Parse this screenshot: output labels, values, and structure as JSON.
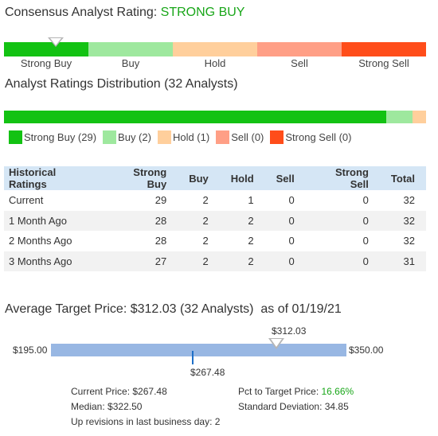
{
  "consensus": {
    "title_prefix": "Consensus Analyst Rating:",
    "rating": "STRONG BUY",
    "scale_labels": [
      "Strong Buy",
      "Buy",
      "Hold",
      "Sell",
      "Strong Sell"
    ],
    "pointer_position": "Strong Buy"
  },
  "distribution": {
    "title": "Analyst Ratings Distribution (32 Analysts)",
    "counts": {
      "strong_buy": 29,
      "buy": 2,
      "hold": 1,
      "sell": 0,
      "strong_sell": 0
    },
    "legend": [
      {
        "label": "Strong Buy (29)",
        "color": "#13c213"
      },
      {
        "label": "Buy (2)",
        "color": "#9ee89e"
      },
      {
        "label": "Hold (1)",
        "color": "#ffcf9c"
      },
      {
        "label": "Sell (0)",
        "color": "#ff9f86"
      },
      {
        "label": "Strong Sell (0)",
        "color": "#ff4d1a"
      }
    ]
  },
  "colors": {
    "strong_buy": "#13c213",
    "buy": "#9ee89e",
    "hold": "#ffcf9c",
    "sell": "#ff9f86",
    "strong_sell": "#ff4d1a",
    "accent_green": "#19a619",
    "table_header_bg": "#d5e6f5",
    "target_bar": "#98b7e3",
    "current_marker": "#1e6fc8"
  },
  "history": {
    "columns": [
      "Historical Ratings",
      "Strong Buy",
      "Buy",
      "Hold",
      "Sell",
      "Strong Sell",
      "Total"
    ],
    "rows": [
      [
        "Current",
        "29",
        "2",
        "1",
        "0",
        "0",
        "32"
      ],
      [
        "1 Month Ago",
        "28",
        "2",
        "2",
        "0",
        "0",
        "32"
      ],
      [
        "2 Months Ago",
        "28",
        "2",
        "2",
        "0",
        "0",
        "32"
      ],
      [
        "3 Months Ago",
        "27",
        "2",
        "2",
        "0",
        "0",
        "31"
      ]
    ]
  },
  "target": {
    "title": "Average Target Price: $312.03 (32 Analysts)",
    "as_of": "as of 01/19/21",
    "low": "$195.00",
    "high": "$350.00",
    "average": "$312.03",
    "current": "$267.48",
    "current_price_label": "Current Price:",
    "current_price": "$267.48",
    "median_label": "Median:",
    "median": "$322.50",
    "up_revisions_label": "Up revisions in last business day:",
    "up_revisions": "2",
    "pct_label": "Pct to Target Price:",
    "pct": "16.66%",
    "stddev_label": "Standard Deviation:",
    "stddev": "34.85"
  }
}
